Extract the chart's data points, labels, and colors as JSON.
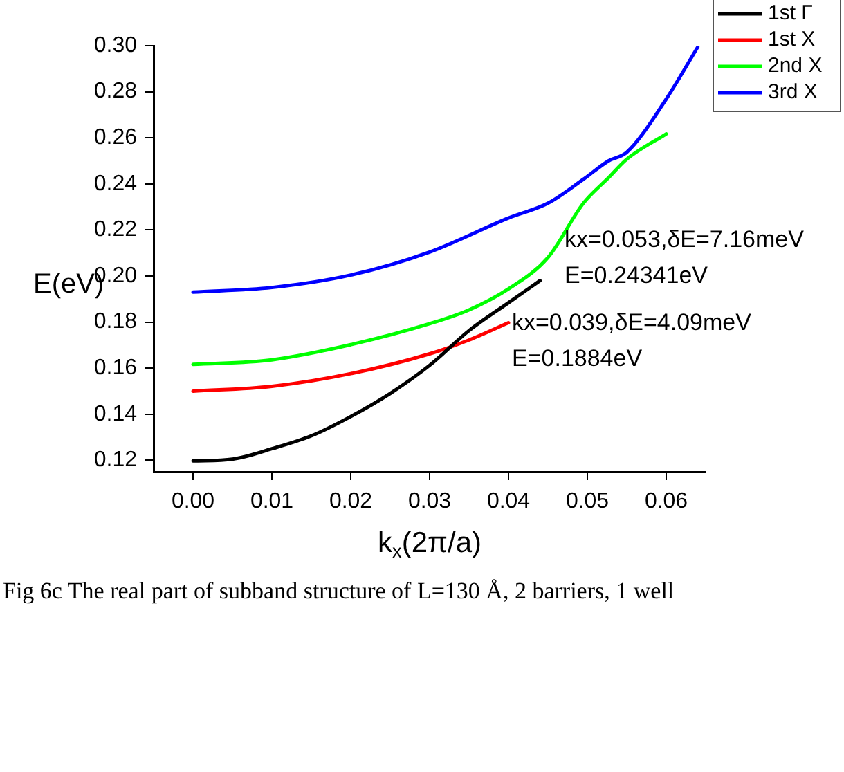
{
  "chart_data": {
    "type": "line",
    "xlabel": "k$_{x}$(2π/a)",
    "ylabel": "E(eV)",
    "xlim": [
      -0.005,
      0.065
    ],
    "ylim": [
      0.115,
      0.3
    ],
    "xticks": [
      {
        "value": 0,
        "label": "0.00"
      },
      {
        "value": 0.01,
        "label": "0.01"
      },
      {
        "value": 0.02,
        "label": "0.02"
      },
      {
        "value": 0.03,
        "label": "0.03"
      },
      {
        "value": 0.04,
        "label": "0.04"
      },
      {
        "value": 0.05,
        "label": "0.05"
      },
      {
        "value": 0.06,
        "label": "0.06"
      }
    ],
    "yticks": [
      {
        "value": 0.12,
        "label": "0.12"
      },
      {
        "value": 0.14,
        "label": "0.14"
      },
      {
        "value": 0.16,
        "label": "0.16"
      },
      {
        "value": 0.18,
        "label": "0.18"
      },
      {
        "value": 0.2,
        "label": "0.20"
      },
      {
        "value": 0.22,
        "label": "0.22"
      },
      {
        "value": 0.24,
        "label": "0.24"
      },
      {
        "value": 0.26,
        "label": "0.26"
      },
      {
        "value": 0.28,
        "label": "0.28"
      },
      {
        "value": 0.3,
        "label": "0.30"
      }
    ],
    "legend": "top right",
    "grid": false,
    "marker": "none",
    "line_style": "solid",
    "series": [
      {
        "name": "1st Γ",
        "color": "#000000",
        "x": [
          0,
          0.005,
          0.01,
          0.015,
          0.02,
          0.025,
          0.03,
          0.035,
          0.04,
          0.044
        ],
        "values": [
          0.1197,
          0.1205,
          0.125,
          0.1306,
          0.139,
          0.149,
          0.1612,
          0.1763,
          0.1884,
          0.198
        ]
      },
      {
        "name": "1st X",
        "color": "#ff0000",
        "x": [
          0,
          0.01,
          0.02,
          0.03,
          0.035,
          0.04
        ],
        "values": [
          0.15,
          0.1521,
          0.1576,
          0.1662,
          0.1722,
          0.1797
        ]
      },
      {
        "name": "2nd X",
        "color": "#00ff00",
        "x": [
          0,
          0.01,
          0.02,
          0.03,
          0.035,
          0.04,
          0.045,
          0.0495,
          0.0527,
          0.055,
          0.06
        ],
        "values": [
          0.1616,
          0.1636,
          0.1702,
          0.1793,
          0.1853,
          0.1944,
          0.208,
          0.2316,
          0.2427,
          0.2507,
          0.2617
        ]
      },
      {
        "name": "3rd X",
        "color": "#0000ff",
        "x": [
          0,
          0.01,
          0.02,
          0.03,
          0.04,
          0.045,
          0.0495,
          0.0527,
          0.055,
          0.06,
          0.064
        ],
        "values": [
          0.193,
          0.195,
          0.2004,
          0.2104,
          0.2252,
          0.2316,
          0.242,
          0.25,
          0.2537,
          0.2768,
          0.2994
        ]
      }
    ],
    "annotations": [
      "kx=0.053,δE=7.16meV\nE=0.24341eV",
      "kx=0.039,δE=4.09meV\nE=0.1884eV",
      "Fig 6c The real part of subband structure of L=130 Å, 2 barriers, 1 well"
    ]
  }
}
